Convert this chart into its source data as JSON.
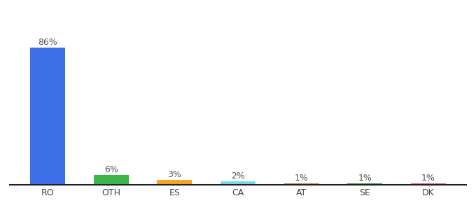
{
  "categories": [
    "RO",
    "OTH",
    "ES",
    "CA",
    "AT",
    "SE",
    "DK"
  ],
  "values": [
    86,
    6,
    3,
    2,
    1,
    1,
    1
  ],
  "labels": [
    "86%",
    "6%",
    "3%",
    "2%",
    "1%",
    "1%",
    "1%"
  ],
  "bar_colors": [
    "#3d6fe8",
    "#3cb54a",
    "#f5a623",
    "#7fd6f0",
    "#c07030",
    "#3a7d3a",
    "#e0457b"
  ],
  "label_fontsize": 9,
  "tick_fontsize": 9,
  "background_color": "#ffffff",
  "ylim": [
    0,
    100
  ],
  "bar_width": 0.55
}
